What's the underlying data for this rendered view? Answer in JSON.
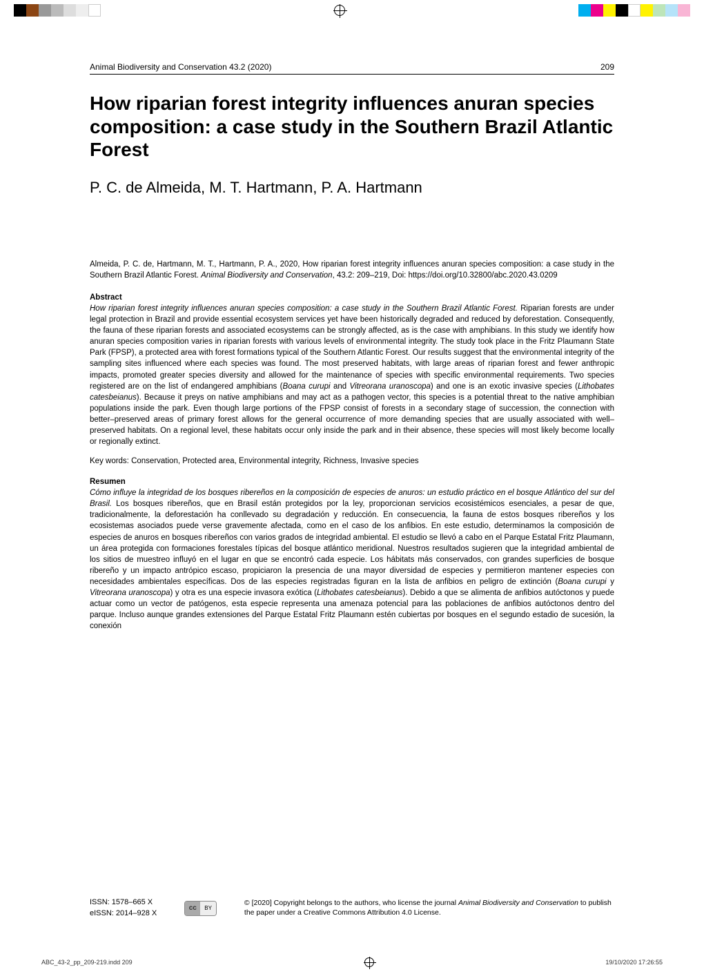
{
  "printer": {
    "left_swatches": [
      "#000000",
      "#8b4513",
      "#999999",
      "#bbbbbb",
      "#dddddd",
      "#eeeeee",
      "#ffffff"
    ],
    "right_swatches": [
      "#00aeef",
      "#ec008c",
      "#fff200",
      "#000000",
      "#ffffff",
      "#fff200",
      "#bde5b9",
      "#b5e3f9",
      "#f9b5d5"
    ],
    "file_info": "ABC_43-2_pp_209-219.indd   209",
    "timestamp": "19/10/2020   17:26:55"
  },
  "header": {
    "journal": "Animal Biodiversity and Conservation 43.2 (2020)",
    "page": "209"
  },
  "title": "How riparian forest integrity influences anuran species composition: a case study in the Southern Brazil Atlantic Forest",
  "authors": "P. C. de Almeida, M. T. Hartmann, P. A. Hartmann",
  "citation": {
    "text": "Almeida, P. C. de, Hartmann, M. T., Hartmann, P. A., 2020, How riparian forest integrity influences anuran species composition: a case study in the Southern Brazil Atlantic Forest. ",
    "journal": "Animal Biodiversity and Conservation",
    "rest": ", 43.2: 209–219, Doi: https://doi.org/10.32800/abc.2020.43.0209"
  },
  "abstract": {
    "heading": "Abstract",
    "title": "How riparian forest integrity influences anuran species composition: a case study in the Southern Brazil Atlantic Forest. ",
    "body": "Riparian forests are under legal protection in Brazil and provide essential ecosystem services yet have been historically degraded and reduced by deforestation. Consequently, the fauna of these riparian forests and associated ecosystems can be strongly affected, as is the case with amphibians. In this study we identify how anuran species composition varies in riparian forests with various levels of environmental integrity. The study took place in the Fritz Plaumann State Park (FPSP), a protected area with forest formations typical of the Southern Atlantic Forest. Our results suggest that the environmental integrity of the sampling sites influenced where each species was found. The most preserved habitats, with large areas of riparian forest and fewer anthropic impacts, promoted greater species diversity and allowed for the maintenance of species with specific environmental requirements. Two species registered are on the list of endangered amphibians (",
    "sp1": "Boana curupi",
    "and": " and ",
    "sp2": "Vitreorana uranoscopa",
    "mid": ") and one is an exotic invasive species (",
    "sp3": "Lithobates catesbeianus",
    "body2": "). Because it preys on native amphibians and may act as a pathogen vector, this species is a potential threat to the native amphibian populations inside the park. Even though large portions of the FPSP consist of forests in a secondary stage of succession, the connection with better–preserved areas of primary forest allows for the general occurrence of more demanding species that are usually associated with well–preserved habitats. On a regional level, these habitats occur only inside the park and in their absence, these species will most likely become locally or regionally extinct."
  },
  "keywords": {
    "label": "Key words: ",
    "text": "Conservation, Protected area, Environmental integrity, Richness, Invasive species"
  },
  "resumen": {
    "heading": "Resumen",
    "title": "Cómo influye la integridad de los bosques ribereños en la composición de especies de anuros: un estudio práctico en el bosque Atlántico del sur del Brasil. ",
    "body": "Los bosques ribereños, que en Brasil están protegidos por la ley, proporcionan servicios ecosistémicos esenciales, a pesar de que, tradicionalmente, la deforestación ha conllevado su degradación y reducción. En consecuencia, la fauna de estos bosques ribereños y los ecosistemas asociados puede verse gravemente afectada, como en el caso de los anfibios. En este estudio, determinamos la composición de especies de anuros en bosques ribereños con varios grados de integridad ambiental. El estudio se llevó a cabo en el Parque Estatal Fritz Plaumann, un área protegida con formaciones forestales típicas del bosque atlántico meridional. Nuestros resultados sugieren que la integridad ambiental de los sitios de muestreo influyó en el lugar en que se encontró cada especie. Los hábitats más conservados, con grandes superficies de bosque ribereño y un impacto antrópico escaso, propiciaron la presencia de una mayor diversidad de especies y permitieron mantener especies con necesidades ambientales específicas. Dos de las especies registradas figuran en la lista de anfibios en peligro de extinción (",
    "sp1": "Boana curupi",
    "y": " y ",
    "sp2": "Vitreorana uranoscopa",
    "mid": ") y otra es una especie invasora exótica (",
    "sp3": "Lithobates catesbeianus",
    "body2": "). Debido a que se alimenta de anfibios autóctonos y puede actuar como un vector de patógenos, esta especie representa una amenaza potencial para las poblaciones de anfibios autóctonos dentro del parque. Incluso aunque grandes extensiones del Parque Estatal Fritz Plaumann estén cubiertas por bosques en el segundo estadio de sucesión, la conexión"
  },
  "footer": {
    "issn": "ISSN: 1578–665 X",
    "eissn": "eISSN: 2014–928 X",
    "cc_left": "cc",
    "cc_right": "BY",
    "copyright": "© [2020] Copyright belongs to the authors, who license the journal ",
    "journal": "Animal Biodiversity and Conservation",
    "copyright2": " to publish the paper under a Creative Commons Attribution 4.0 License."
  }
}
